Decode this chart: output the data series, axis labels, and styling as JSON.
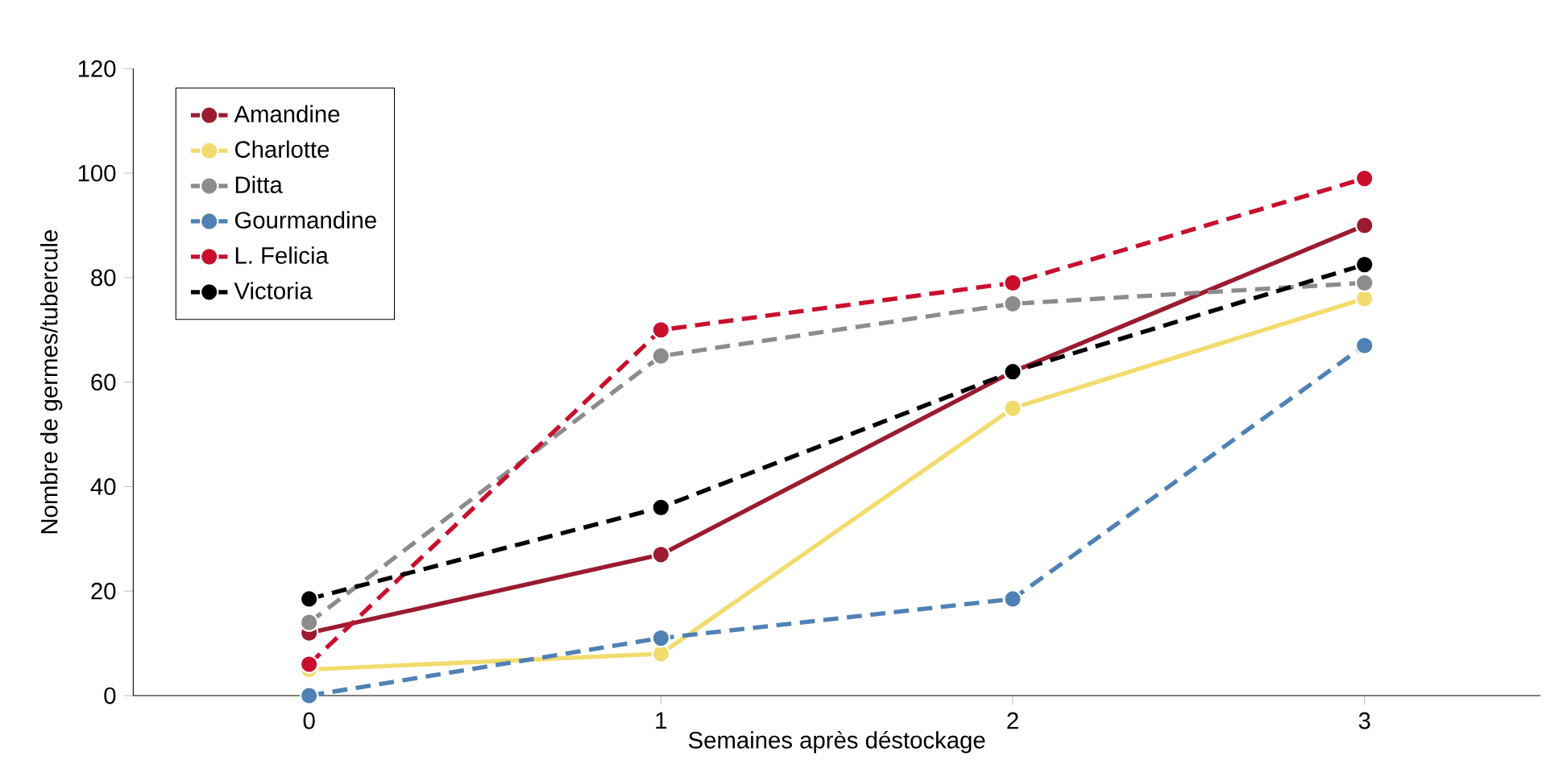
{
  "chart_data": {
    "type": "line",
    "xlabel": "Semaines après déstockage",
    "ylabel": "Nombre de germes/tubercule",
    "x": [
      0,
      1,
      2,
      3
    ],
    "xlim": [
      -0.5,
      3.5
    ],
    "xticks": [
      0,
      1,
      2,
      3
    ],
    "ylim": [
      0,
      120
    ],
    "yticks": [
      0,
      20,
      40,
      60,
      80,
      100,
      120
    ],
    "grid": false,
    "legend": "top left",
    "marker": "circle",
    "series": [
      {
        "name": "Amandine",
        "color": "#9b1b30",
        "line_style": "solid",
        "values": [
          12,
          27,
          62,
          90
        ]
      },
      {
        "name": "Charlotte",
        "color": "#f2dc6e",
        "line_style": "solid",
        "values": [
          5,
          8,
          55,
          76
        ]
      },
      {
        "name": "Ditta",
        "color": "#8c8c8c",
        "line_style": "dashed",
        "values": [
          14,
          65,
          75,
          79
        ]
      },
      {
        "name": "Gourmandine",
        "color": "#4f81b4",
        "line_style": "dashed",
        "values": [
          0,
          11,
          18.5,
          67
        ]
      },
      {
        "name": "L. Felicia",
        "color": "#c8102e",
        "line_style": "dashed",
        "values": [
          6,
          70,
          79,
          99
        ]
      },
      {
        "name": "Victoria",
        "color": "#000000",
        "line_style": "dashed",
        "values": [
          18.5,
          36,
          62,
          82.5
        ]
      }
    ]
  }
}
